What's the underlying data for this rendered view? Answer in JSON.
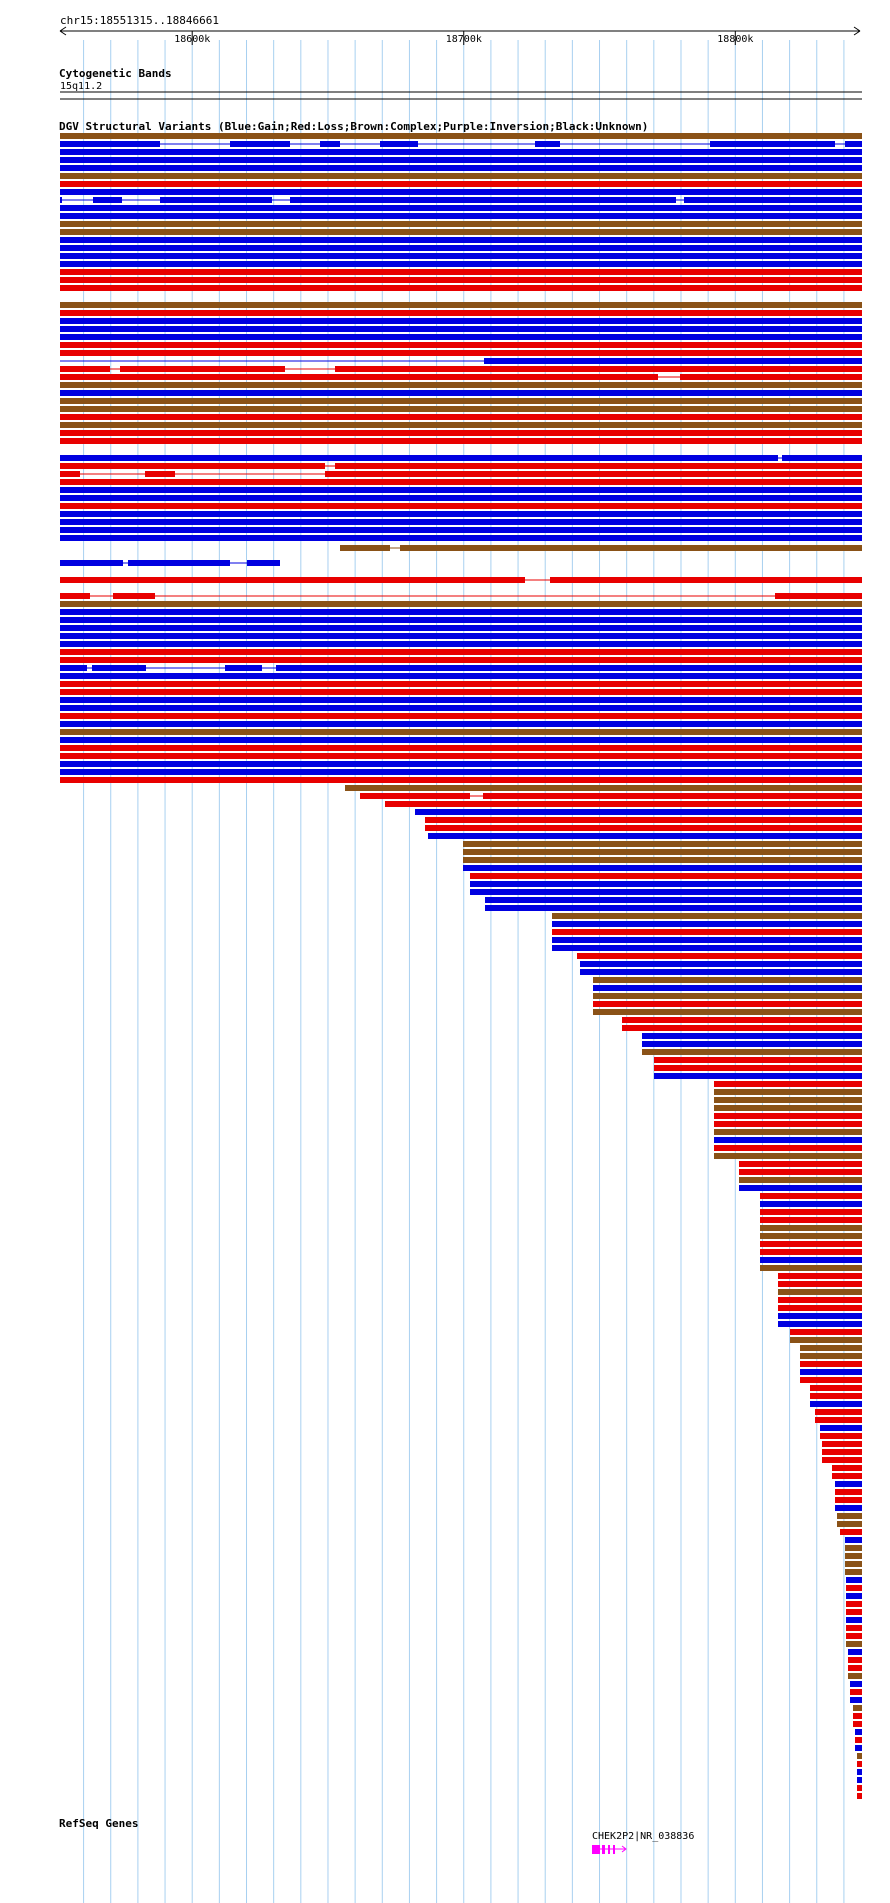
{
  "region": {
    "label": "chr15:18551315..18846661",
    "start": 18551315,
    "end": 18846661
  },
  "ruler": {
    "ticks": [
      {
        "pos": 18600000,
        "label": "18600k"
      },
      {
        "pos": 18700000,
        "label": "18700k"
      },
      {
        "pos": 18800000,
        "label": "18800k"
      }
    ]
  },
  "cytoband": {
    "title": "Cytogenetic Bands",
    "band": "15q11.2"
  },
  "dgv": {
    "title": "DGV Structural Variants (Blue:Gain;Red:Loss;Brown:Complex;Purple:Inversion;Black:Unknown)",
    "colors": {
      "gain": "#0000e0",
      "loss": "#e80000",
      "complex": "#8a5217",
      "inversion": "#800080",
      "unknown": "#000000"
    }
  },
  "refseq": {
    "title": "RefSeq Genes",
    "gene_label": "CHEK2P2|NR_038836",
    "color": "#ff00ff"
  }
}
